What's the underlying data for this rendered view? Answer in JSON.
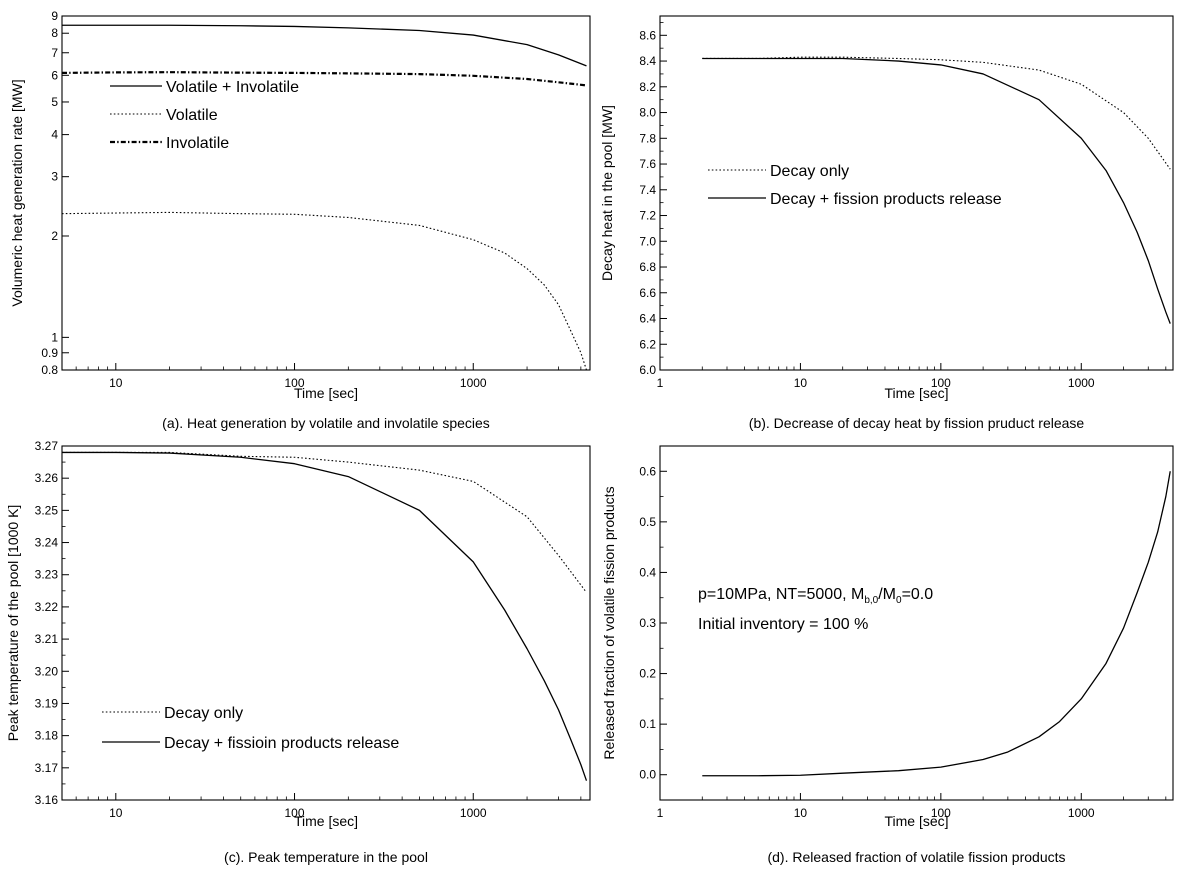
{
  "chart_data": [
    {
      "id": "a",
      "type": "line",
      "caption": "(a). Heat generation by volatile and involatile species",
      "xlabel": "Time [sec]",
      "ylabel": "Volumeric heat generation rate [MW]",
      "xscale": "log",
      "yscale": "log",
      "xlim": [
        5,
        4500
      ],
      "ylim": [
        0.8,
        9
      ],
      "xticks": [
        10,
        100,
        1000
      ],
      "xtick_labels": [
        "10",
        "100",
        "1000"
      ],
      "yticks": [
        0.8,
        0.9,
        1,
        2,
        3,
        4,
        5,
        6,
        7,
        8,
        9
      ],
      "ytick_labels": [
        "0.8",
        "0.9",
        "1",
        "2",
        "3",
        "4",
        "5",
        "6",
        "7",
        "8",
        "9"
      ],
      "grid": false,
      "legend": "upper-left",
      "series": [
        {
          "name": "Volatile + Involatile",
          "style": "solid",
          "x": [
            5,
            10,
            20,
            50,
            100,
            200,
            500,
            1000,
            2000,
            3000,
            4300
          ],
          "y": [
            8.45,
            8.45,
            8.45,
            8.42,
            8.38,
            8.3,
            8.15,
            7.9,
            7.4,
            6.9,
            6.4
          ]
        },
        {
          "name": "Volatile",
          "style": "dotted",
          "x": [
            5,
            10,
            20,
            50,
            100,
            200,
            500,
            1000,
            1500,
            2000,
            2500,
            3000,
            3500,
            4000,
            4300
          ],
          "y": [
            2.33,
            2.34,
            2.35,
            2.33,
            2.32,
            2.27,
            2.15,
            1.95,
            1.78,
            1.6,
            1.43,
            1.25,
            1.05,
            0.9,
            0.8
          ]
        },
        {
          "name": "Involatile",
          "style": "dashdot",
          "x": [
            5,
            10,
            20,
            50,
            100,
            200,
            500,
            1000,
            2000,
            3000,
            4300
          ],
          "y": [
            6.1,
            6.12,
            6.13,
            6.11,
            6.1,
            6.08,
            6.05,
            5.98,
            5.85,
            5.72,
            5.6
          ]
        }
      ]
    },
    {
      "id": "b",
      "type": "line",
      "caption": "(b). Decrease of decay heat by fission pruduct release",
      "xlabel": "Time [sec]",
      "ylabel": "Decay heat in the pool  [MW]",
      "xscale": "log",
      "yscale": "linear",
      "xlim": [
        1,
        4500
      ],
      "ylim": [
        6.0,
        8.75
      ],
      "xticks": [
        1,
        10,
        100,
        1000
      ],
      "xtick_labels": [
        "1",
        "10",
        "100",
        "1000"
      ],
      "yticks": [
        6.0,
        6.2,
        6.4,
        6.6,
        6.8,
        7.0,
        7.2,
        7.4,
        7.6,
        7.8,
        8.0,
        8.2,
        8.4,
        8.6
      ],
      "ytick_labels": [
        "6.0",
        "6.2",
        "6.4",
        "6.6",
        "6.8",
        "7.0",
        "7.2",
        "7.4",
        "7.6",
        "7.8",
        "8.0",
        "8.2",
        "8.4",
        "8.6"
      ],
      "grid": false,
      "legend": "center-left",
      "series": [
        {
          "name": "Decay only",
          "style": "dotted",
          "x": [
            2,
            5,
            10,
            20,
            50,
            100,
            200,
            500,
            1000,
            2000,
            3000,
            4300
          ],
          "y": [
            8.42,
            8.42,
            8.43,
            8.43,
            8.42,
            8.41,
            8.39,
            8.33,
            8.22,
            8.0,
            7.8,
            7.56
          ]
        },
        {
          "name": "Decay + fission products release",
          "style": "solid",
          "x": [
            2,
            5,
            10,
            20,
            50,
            100,
            200,
            500,
            1000,
            1500,
            2000,
            2500,
            3000,
            3500,
            4000,
            4300
          ],
          "y": [
            8.42,
            8.42,
            8.42,
            8.42,
            8.4,
            8.37,
            8.3,
            8.1,
            7.8,
            7.55,
            7.3,
            7.07,
            6.85,
            6.63,
            6.45,
            6.36
          ]
        }
      ]
    },
    {
      "id": "c",
      "type": "line",
      "caption": "(c). Peak temperature in the pool",
      "xlabel": "Time [sec]",
      "ylabel": "Peak temperature of the pool [1000 K]",
      "xscale": "log",
      "yscale": "linear",
      "xlim": [
        5,
        4500
      ],
      "ylim": [
        3.16,
        3.27
      ],
      "xticks": [
        10,
        100,
        1000
      ],
      "xtick_labels": [
        "10",
        "100",
        "1000"
      ],
      "yticks": [
        3.16,
        3.17,
        3.18,
        3.19,
        3.2,
        3.21,
        3.22,
        3.23,
        3.24,
        3.25,
        3.26,
        3.27
      ],
      "ytick_labels": [
        "3.16",
        "3.17",
        "3.18",
        "3.19",
        "3.20",
        "3.21",
        "3.22",
        "3.23",
        "3.24",
        "3.25",
        "3.26",
        "3.27"
      ],
      "grid": false,
      "legend": "lower-left",
      "series": [
        {
          "name": "Decay only",
          "style": "dotted",
          "x": [
            5,
            10,
            20,
            50,
            100,
            200,
            500,
            1000,
            2000,
            3000,
            4300
          ],
          "y": [
            3.268,
            3.268,
            3.268,
            3.2668,
            3.2665,
            3.265,
            3.2625,
            3.259,
            3.248,
            3.236,
            3.2245
          ]
        },
        {
          "name": "Decay + fissioin products release",
          "style": "solid",
          "x": [
            5,
            10,
            20,
            50,
            100,
            200,
            500,
            1000,
            1500,
            2000,
            2500,
            3000,
            3500,
            4000,
            4300
          ],
          "y": [
            3.268,
            3.268,
            3.2678,
            3.2665,
            3.2645,
            3.2605,
            3.25,
            3.234,
            3.219,
            3.207,
            3.197,
            3.188,
            3.179,
            3.171,
            3.166
          ]
        }
      ]
    },
    {
      "id": "d",
      "type": "line",
      "caption": "(d). Released fraction of volatile fission products",
      "xlabel": "Time [sec]",
      "ylabel": "Released fraction of volatile fission products",
      "xscale": "log",
      "yscale": "linear",
      "xlim": [
        1,
        4500
      ],
      "ylim": [
        -0.05,
        0.65
      ],
      "xticks": [
        1,
        10,
        100,
        1000
      ],
      "xtick_labels": [
        "1",
        "10",
        "100",
        "1000"
      ],
      "yticks": [
        0.0,
        0.1,
        0.2,
        0.3,
        0.4,
        0.5,
        0.6
      ],
      "ytick_labels": [
        "0.0",
        "0.1",
        "0.2",
        "0.3",
        "0.4",
        "0.5",
        "0.6"
      ],
      "grid": false,
      "annotation": {
        "line1_parts": [
          {
            "text": "p=10MPa, NT=5000, M",
            "sub": false
          },
          {
            "text": "b,0",
            "sub": true
          },
          {
            "text": "/M",
            "sub": false
          },
          {
            "text": "0",
            "sub": true
          },
          {
            "text": "=0.0",
            "sub": false
          }
        ],
        "line2": "Initial inventory = 100 %"
      },
      "series": [
        {
          "style": "solid",
          "x": [
            2,
            5,
            10,
            20,
            50,
            100,
            200,
            300,
            500,
            700,
            1000,
            1500,
            2000,
            2500,
            3000,
            3500,
            4000,
            4300
          ],
          "y": [
            -0.002,
            -0.002,
            -0.001,
            0.003,
            0.008,
            0.015,
            0.03,
            0.045,
            0.075,
            0.105,
            0.15,
            0.22,
            0.29,
            0.36,
            0.42,
            0.48,
            0.55,
            0.6
          ]
        }
      ]
    }
  ]
}
